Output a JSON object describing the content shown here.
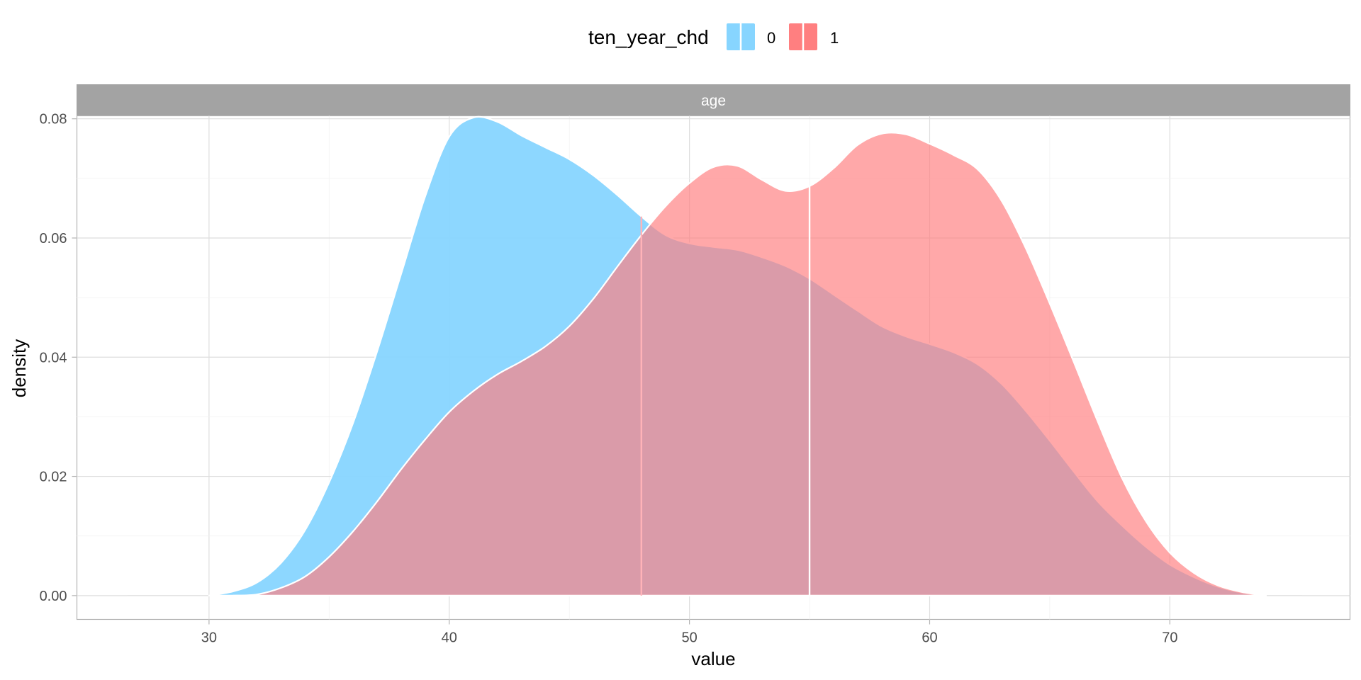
{
  "chart_data": {
    "type": "area",
    "subtype": "density",
    "facet": "age",
    "xlabel": "value",
    "ylabel": "density",
    "xlim": [
      24.5,
      77.5
    ],
    "ylim": [
      -0.004,
      0.0805
    ],
    "x_ticks": [
      30,
      40,
      50,
      60,
      70
    ],
    "y_ticks": [
      0.0,
      0.02,
      0.04,
      0.06,
      0.08
    ],
    "y_tick_labels": [
      "0.00",
      "0.02",
      "0.04",
      "0.06",
      "0.08"
    ],
    "grid": true,
    "legend": {
      "title": "ten_year_chd",
      "position": "top",
      "entries": [
        "0",
        "1"
      ]
    },
    "series": [
      {
        "name": "0",
        "color": "#87D5FF",
        "median": 48,
        "points": [
          [
            30,
            0.0
          ],
          [
            31,
            0.0007
          ],
          [
            32,
            0.0022
          ],
          [
            33,
            0.0055
          ],
          [
            34,
            0.011
          ],
          [
            35,
            0.019
          ],
          [
            36,
            0.029
          ],
          [
            37,
            0.041
          ],
          [
            38,
            0.054
          ],
          [
            39,
            0.067
          ],
          [
            40,
            0.077
          ],
          [
            41,
            0.0802
          ],
          [
            42,
            0.0795
          ],
          [
            43,
            0.0772
          ],
          [
            44,
            0.0752
          ],
          [
            45,
            0.0732
          ],
          [
            46,
            0.0705
          ],
          [
            47,
            0.0672
          ],
          [
            48,
            0.0636
          ],
          [
            49,
            0.0605
          ],
          [
            50,
            0.0591
          ],
          [
            51,
            0.0585
          ],
          [
            52,
            0.058
          ],
          [
            53,
            0.0568
          ],
          [
            54,
            0.0553
          ],
          [
            55,
            0.0532
          ],
          [
            56,
            0.0505
          ],
          [
            57,
            0.0478
          ],
          [
            58,
            0.0452
          ],
          [
            59,
            0.0435
          ],
          [
            60,
            0.0422
          ],
          [
            61,
            0.0408
          ],
          [
            62,
            0.0388
          ],
          [
            63,
            0.0355
          ],
          [
            64,
            0.031
          ],
          [
            65,
            0.026
          ],
          [
            66,
            0.0208
          ],
          [
            67,
            0.0158
          ],
          [
            68,
            0.0118
          ],
          [
            69,
            0.0082
          ],
          [
            70,
            0.0052
          ],
          [
            71,
            0.0031
          ],
          [
            72,
            0.0015
          ],
          [
            73,
            0.0005
          ],
          [
            74,
            0.0
          ]
        ]
      },
      {
        "name": "1",
        "color": "#FF7F80",
        "median": 55,
        "points": [
          [
            31,
            0.0
          ],
          [
            32,
            0.0002
          ],
          [
            33,
            0.0013
          ],
          [
            34,
            0.0032
          ],
          [
            35,
            0.0065
          ],
          [
            36,
            0.0108
          ],
          [
            37,
            0.0158
          ],
          [
            38,
            0.0212
          ],
          [
            39,
            0.0262
          ],
          [
            40,
            0.0308
          ],
          [
            41,
            0.0343
          ],
          [
            42,
            0.0371
          ],
          [
            43,
            0.0393
          ],
          [
            44,
            0.0418
          ],
          [
            45,
            0.0452
          ],
          [
            46,
            0.0498
          ],
          [
            47,
            0.0552
          ],
          [
            48,
            0.0605
          ],
          [
            49,
            0.0653
          ],
          [
            50,
            0.0692
          ],
          [
            51,
            0.0719
          ],
          [
            52,
            0.0721
          ],
          [
            53,
            0.0698
          ],
          [
            54,
            0.0679
          ],
          [
            55,
            0.0687
          ],
          [
            56,
            0.0717
          ],
          [
            57,
            0.0756
          ],
          [
            58,
            0.0775
          ],
          [
            59,
            0.0774
          ],
          [
            60,
            0.0758
          ],
          [
            61,
            0.0739
          ],
          [
            62,
            0.0715
          ],
          [
            63,
            0.0662
          ],
          [
            64,
            0.0583
          ],
          [
            65,
            0.049
          ],
          [
            66,
            0.0392
          ],
          [
            67,
            0.0292
          ],
          [
            68,
            0.0198
          ],
          [
            69,
            0.0125
          ],
          [
            70,
            0.0072
          ],
          [
            71,
            0.0038
          ],
          [
            72,
            0.0017
          ],
          [
            73,
            0.0006
          ],
          [
            74,
            0.0
          ]
        ]
      }
    ],
    "overlap_color": "#C66B80"
  }
}
